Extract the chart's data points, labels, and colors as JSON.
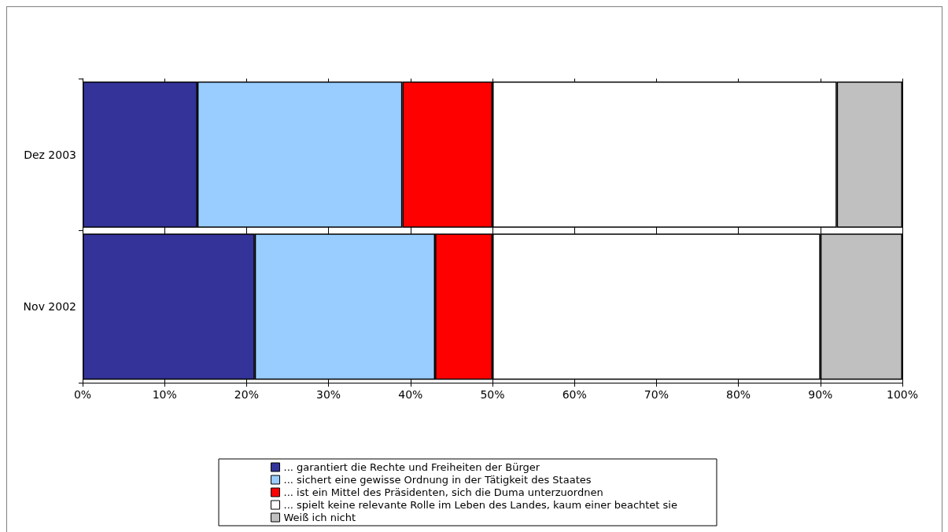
{
  "chart_data": {
    "type": "bar",
    "orientation": "horizontal",
    "stacked": true,
    "categories": [
      "Dez 2003",
      "Nov 2002"
    ],
    "series": [
      {
        "name": "... garantiert die Rechte und Freiheiten der Bürger",
        "color": "#333399",
        "values": [
          14,
          21
        ]
      },
      {
        "name": "... sichert eine gewisse Ordnung in der Tätigkeit des Staates",
        "color": "#99ccff",
        "values": [
          25,
          22
        ]
      },
      {
        "name": "... ist ein Mittel des Präsidenten, sich die Duma unterzuordnen",
        "color": "#ff0000",
        "values": [
          11,
          7
        ]
      },
      {
        "name": "... spielt keine relevante Rolle im Leben des Landes, kaum einer beachtet sie",
        "color": "#ffffff",
        "values": [
          42,
          40
        ]
      },
      {
        "name": "Weiß ich nicht",
        "color": "#c0c0c0",
        "values": [
          8,
          10
        ]
      }
    ],
    "xlim": [
      0,
      100
    ],
    "xticks": [
      {
        "value": 0,
        "label": "0%"
      },
      {
        "value": 10,
        "label": "10%"
      },
      {
        "value": 20,
        "label": "20%"
      },
      {
        "value": 30,
        "label": "30%"
      },
      {
        "value": 40,
        "label": "40%"
      },
      {
        "value": 50,
        "label": "50%"
      },
      {
        "value": 60,
        "label": "60%"
      },
      {
        "value": 70,
        "label": "70%"
      },
      {
        "value": 80,
        "label": "80%"
      },
      {
        "value": 90,
        "label": "90%"
      },
      {
        "value": 100,
        "label": "100%"
      }
    ],
    "grid": "x",
    "legend": "bottom"
  }
}
